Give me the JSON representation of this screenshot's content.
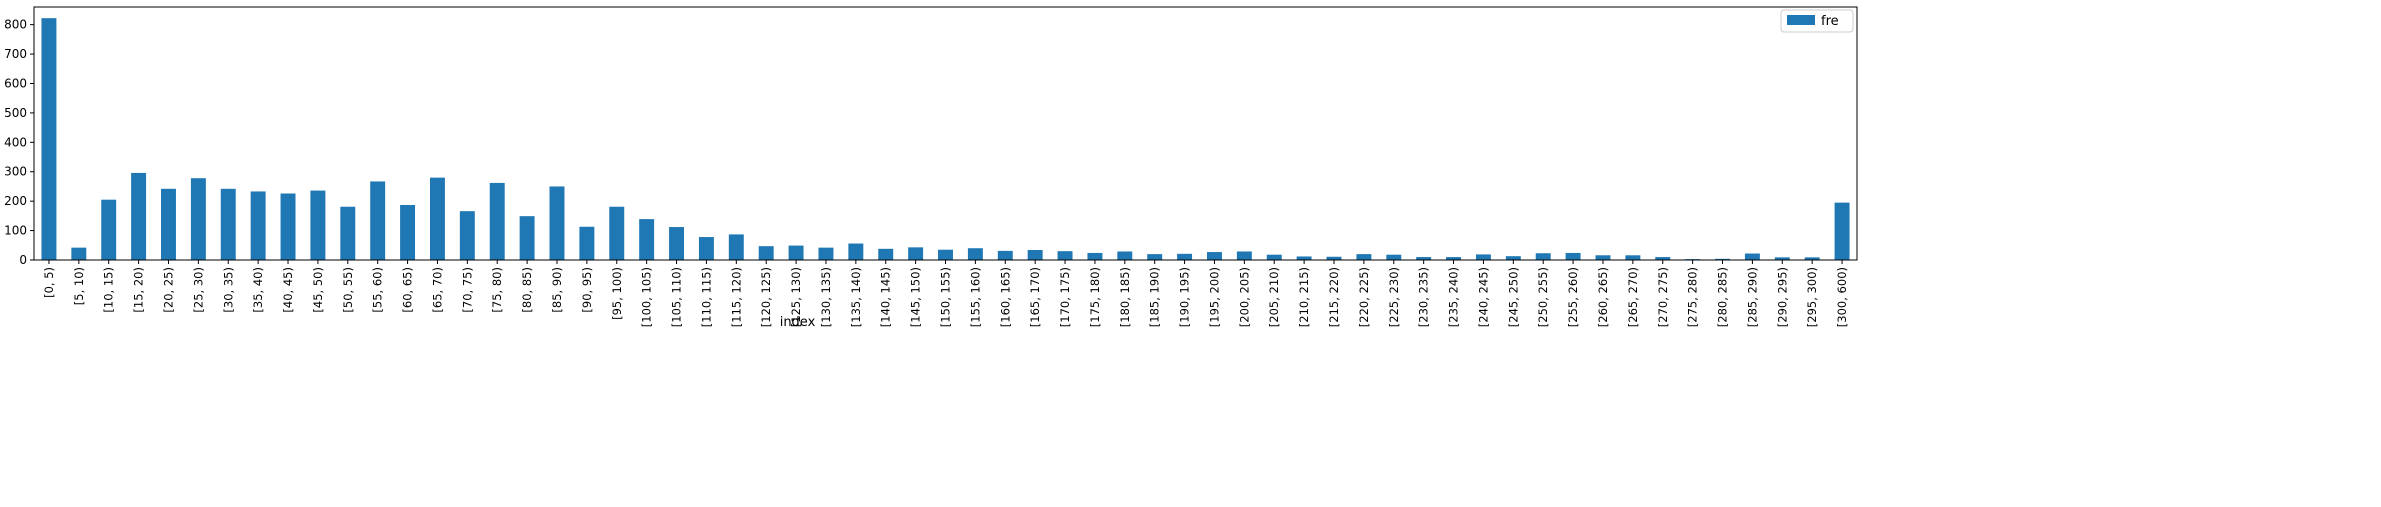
{
  "chart_data": {
    "type": "bar",
    "xlabel": "index",
    "ylabel": "",
    "title": "",
    "ylim": [
      0,
      860
    ],
    "yticks": [
      0,
      100,
      200,
      300,
      400,
      500,
      600,
      700,
      800
    ],
    "legend_position": "top-right",
    "grid": false,
    "bar_color": "#1f77b4",
    "categories": [
      "[0, 5)",
      "[5, 10)",
      "[10, 15)",
      "[15, 20)",
      "[20, 25)",
      "[25, 30)",
      "[30, 35)",
      "[35, 40)",
      "[40, 45)",
      "[45, 50)",
      "[50, 55)",
      "[55, 60)",
      "[60, 65)",
      "[65, 70)",
      "[70, 75)",
      "[75, 80)",
      "[80, 85)",
      "[85, 90)",
      "[90, 95)",
      "[95, 100)",
      "[100, 105)",
      "[105, 110)",
      "[110, 115)",
      "[115, 120)",
      "[120, 125)",
      "[125, 130)",
      "[130, 135)",
      "[135, 140)",
      "[140, 145)",
      "[145, 150)",
      "[150, 155)",
      "[155, 160)",
      "[160, 165)",
      "[165, 170)",
      "[170, 175)",
      "[175, 180)",
      "[180, 185)",
      "[185, 190)",
      "[190, 195)",
      "[195, 200)",
      "[200, 205)",
      "[205, 210)",
      "[210, 215)",
      "[215, 220)",
      "[220, 225)",
      "[225, 230)",
      "[230, 235)",
      "[235, 240)",
      "[240, 245)",
      "[245, 250)",
      "[250, 255)",
      "[255, 260)",
      "[260, 265)",
      "[265, 270)",
      "[270, 275)",
      "[275, 280)",
      "[280, 285)",
      "[285, 290)",
      "[290, 295)",
      "[295, 300)",
      "[300, 600)"
    ],
    "series": [
      {
        "name": "fre",
        "values": [
          822,
          42,
          205,
          296,
          242,
          278,
          242,
          233,
          226,
          236,
          181,
          267,
          187,
          280,
          166,
          262,
          149,
          250,
          113,
          181,
          139,
          112,
          78,
          87,
          47,
          49,
          42,
          56,
          38,
          43,
          35,
          40,
          31,
          34,
          30,
          24,
          29,
          20,
          21,
          27,
          29,
          18,
          12,
          11,
          20,
          18,
          10,
          10,
          19,
          13,
          23,
          24,
          16,
          16,
          10,
          3,
          4,
          22,
          9,
          9,
          195
        ]
      }
    ]
  }
}
